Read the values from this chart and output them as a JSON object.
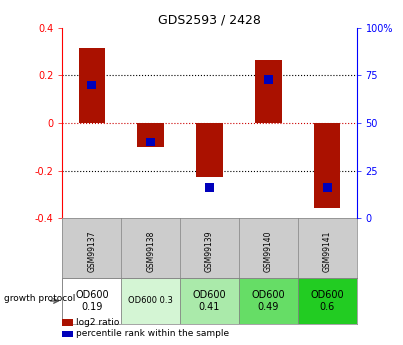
{
  "title": "GDS2593 / 2428",
  "samples": [
    "GSM99137",
    "GSM99138",
    "GSM99139",
    "GSM99140",
    "GSM99141"
  ],
  "log2_ratios": [
    0.315,
    -0.1,
    -0.225,
    0.265,
    -0.355
  ],
  "percentile_ranks": [
    72,
    38,
    14,
    75,
    14
  ],
  "bar_color_red": "#aa1100",
  "bar_color_blue": "#0000bb",
  "ylim": [
    -0.4,
    0.4
  ],
  "right_ylim": [
    0,
    100
  ],
  "right_yticks": [
    0,
    25,
    50,
    75,
    100
  ],
  "left_yticks": [
    -0.4,
    -0.2,
    0.0,
    0.2,
    0.4
  ],
  "left_yticklabels": [
    "-0.4",
    "-0.2",
    "0",
    "0.2",
    "0.4"
  ],
  "protocol_labels": [
    "OD600\n0.19",
    "OD600 0.3",
    "OD600\n0.41",
    "OD600\n0.49",
    "OD600\n0.6"
  ],
  "protocol_colors": [
    "#ffffff",
    "#d4f5d4",
    "#aaeaaa",
    "#66dd66",
    "#22cc22"
  ],
  "protocol_fontsizes": [
    7,
    6,
    7,
    7,
    7
  ],
  "legend_red_label": "log2 ratio",
  "legend_blue_label": "percentile rank within the sample",
  "background_color": "#ffffff",
  "zero_line_color": "#cc0000",
  "dotted_line_color": "#000000",
  "label_area_color": "#cccccc"
}
